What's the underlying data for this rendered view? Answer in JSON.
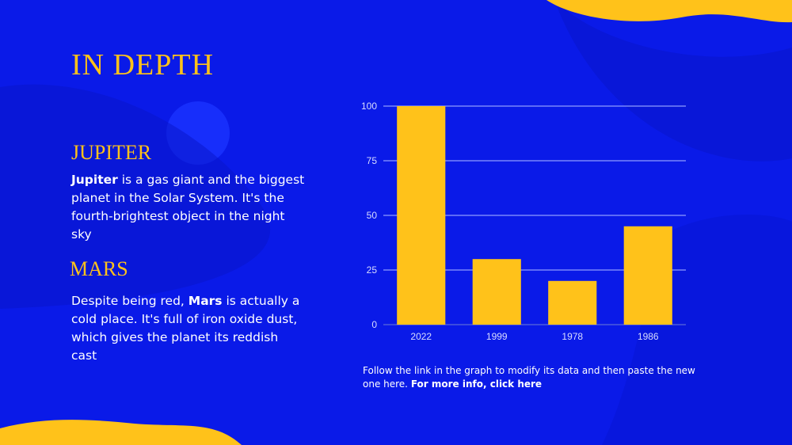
{
  "colors": {
    "background": "#0a1ae8",
    "accent": "#ffc21a",
    "text": "#ffffff"
  },
  "slide": {
    "title": "IN DEPTH",
    "jupiter": {
      "heading": "JUPITER",
      "bold": "Jupiter",
      "text": " is a gas giant and the biggest planet in the Solar System. It's the fourth-brightest object in the night sky"
    },
    "mars": {
      "heading": "MARS",
      "pre": "Despite being red, ",
      "bold": "Mars",
      "text": " is actually a cold place. It's full of iron oxide dust, which gives the planet its reddish cast"
    },
    "note": {
      "text": "Follow the link in the graph to modify its data and then paste the new one here. ",
      "link": "For more info, click here"
    }
  },
  "chart_data": {
    "type": "bar",
    "categories": [
      "2022",
      "1999",
      "1978",
      "1986"
    ],
    "values": [
      100,
      30,
      20,
      45
    ],
    "yticks": [
      "0",
      "25",
      "50",
      "75",
      "100"
    ],
    "ylim": [
      0,
      100
    ],
    "grid": true,
    "bar_color": "#ffc21a",
    "title": "",
    "xlabel": "",
    "ylabel": ""
  }
}
